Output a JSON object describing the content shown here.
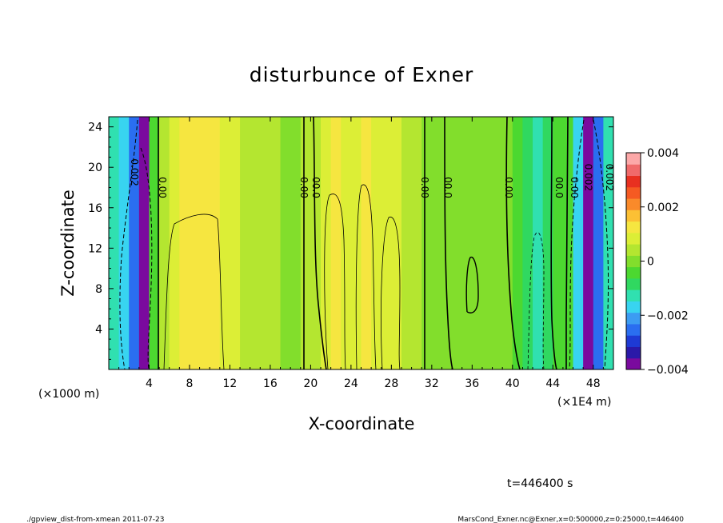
{
  "chart_data": {
    "type": "heatmap",
    "title": "disturbunce of Exner",
    "xlabel": "X-coordinate",
    "ylabel": "Z-coordinate",
    "x_unit_left": "(×1000 m)",
    "x_unit_right": "(×1E4 m)",
    "xlim": [
      0,
      50
    ],
    "ylim": [
      0,
      25
    ],
    "x_ticks": [
      "4",
      "8",
      "12",
      "16",
      "20",
      "24",
      "28",
      "32",
      "36",
      "40",
      "44",
      "48"
    ],
    "x_tick_values": [
      4,
      8,
      12,
      16,
      20,
      24,
      28,
      32,
      36,
      40,
      44,
      48
    ],
    "y_ticks": [
      "4",
      "8",
      "12",
      "16",
      "20",
      "24"
    ],
    "y_tick_values": [
      4,
      8,
      12,
      16,
      20,
      24
    ],
    "colorbar": {
      "range": [
        -0.004,
        0.004
      ],
      "tick_labels": [
        "0.004",
        "0.002",
        "0",
        "−0.002",
        "−0.004"
      ],
      "tick_values": [
        0.004,
        0.002,
        0,
        -0.002,
        -0.004
      ],
      "colors": [
        "#7a0a9e",
        "#2a19a8",
        "#1e3ad4",
        "#2a6ef0",
        "#3c9cf2",
        "#38d4f0",
        "#30e0b0",
        "#30d860",
        "#4cd830",
        "#82de2c",
        "#b4e630",
        "#dcee36",
        "#f6e640",
        "#fcc034",
        "#fa8a2a",
        "#f55a22",
        "#e83020",
        "#f06a6a",
        "#fca8a8"
      ]
    },
    "columns": [
      {
        "x": 0,
        "value": -0.0013
      },
      {
        "x": 1,
        "value": -0.0016
      },
      {
        "x": 2,
        "value": -0.0024
      },
      {
        "x": 3,
        "value": -0.004
      },
      {
        "x": 4,
        "value": -0.0005
      },
      {
        "x": 5,
        "value": 0.0005
      },
      {
        "x": 6,
        "value": 0.0009
      },
      {
        "x": 7,
        "value": 0.0012
      },
      {
        "x": 8,
        "value": 0.0012
      },
      {
        "x": 9,
        "value": 0.0012
      },
      {
        "x": 10,
        "value": 0.0011
      },
      {
        "x": 11,
        "value": 0.001
      },
      {
        "x": 12,
        "value": 0.0008
      },
      {
        "x": 13,
        "value": 0.0006
      },
      {
        "x": 14,
        "value": 0.0005
      },
      {
        "x": 15,
        "value": 0.0004
      },
      {
        "x": 16,
        "value": 0.0003
      },
      {
        "x": 17,
        "value": 0.0002
      },
      {
        "x": 18,
        "value": 0.0002
      },
      {
        "x": 19,
        "value": 0.0003
      },
      {
        "x": 20,
        "value": 0.0004
      },
      {
        "x": 21,
        "value": 0.0007
      },
      {
        "x": 22,
        "value": 0.0012
      },
      {
        "x": 23,
        "value": 0.0009
      },
      {
        "x": 24,
        "value": 0.0008
      },
      {
        "x": 25,
        "value": 0.0011
      },
      {
        "x": 26,
        "value": 0.0008
      },
      {
        "x": 27,
        "value": 0.0007
      },
      {
        "x": 28,
        "value": 0.001
      },
      {
        "x": 29,
        "value": 0.0006
      },
      {
        "x": 30,
        "value": 0.0004
      },
      {
        "x": 31,
        "value": 0.0002
      },
      {
        "x": 32,
        "value": 0.0001
      },
      {
        "x": 33,
        "value": 0.0002
      },
      {
        "x": 34,
        "value": 0.0002
      },
      {
        "x": 35,
        "value": 0.0001
      },
      {
        "x": 36,
        "value": 0.0002
      },
      {
        "x": 37,
        "value": 0.0001
      },
      {
        "x": 38,
        "value": 0.0
      },
      {
        "x": 39,
        "value": -0.0002
      },
      {
        "x": 40,
        "value": -0.0005
      },
      {
        "x": 41,
        "value": -0.0008
      },
      {
        "x": 42,
        "value": -0.0011
      },
      {
        "x": 43,
        "value": -0.0009
      },
      {
        "x": 44,
        "value": -0.0006
      },
      {
        "x": 45,
        "value": -0.0003
      },
      {
        "x": 46,
        "value": -0.0016
      },
      {
        "x": 47,
        "value": -0.004
      },
      {
        "x": 48,
        "value": -0.0024
      },
      {
        "x": 49,
        "value": -0.0014
      }
    ],
    "contour_labels": [
      {
        "text": "0.002",
        "x": 2.2,
        "z": 19.5
      },
      {
        "text": "0.00",
        "x": 5.0,
        "z": 18.0
      },
      {
        "text": "0.00",
        "x": 19.0,
        "z": 18.0
      },
      {
        "text": "00.0",
        "x": 20.2,
        "z": 18.0
      },
      {
        "text": "0.00",
        "x": 31.0,
        "z": 18.0
      },
      {
        "text": "00.0",
        "x": 33.3,
        "z": 18.0
      },
      {
        "text": "0.00",
        "x": 39.3,
        "z": 18.0
      },
      {
        "text": "00.0",
        "x": 44.3,
        "z": 18.0
      },
      {
        "text": "0.00",
        "x": 45.8,
        "z": 18.0
      },
      {
        "text": "0.002",
        "x": 47.2,
        "z": 19.0
      },
      {
        "text": "0.002",
        "x": 49.3,
        "z": 19.0
      }
    ],
    "time_label": "t=446400 s"
  },
  "footer": {
    "left": "./gpview_dist-from-xmean  2011-07-23",
    "right": "MarsCond_Exner.nc@Exner,x=0:500000,z=0:25000,t=446400"
  }
}
